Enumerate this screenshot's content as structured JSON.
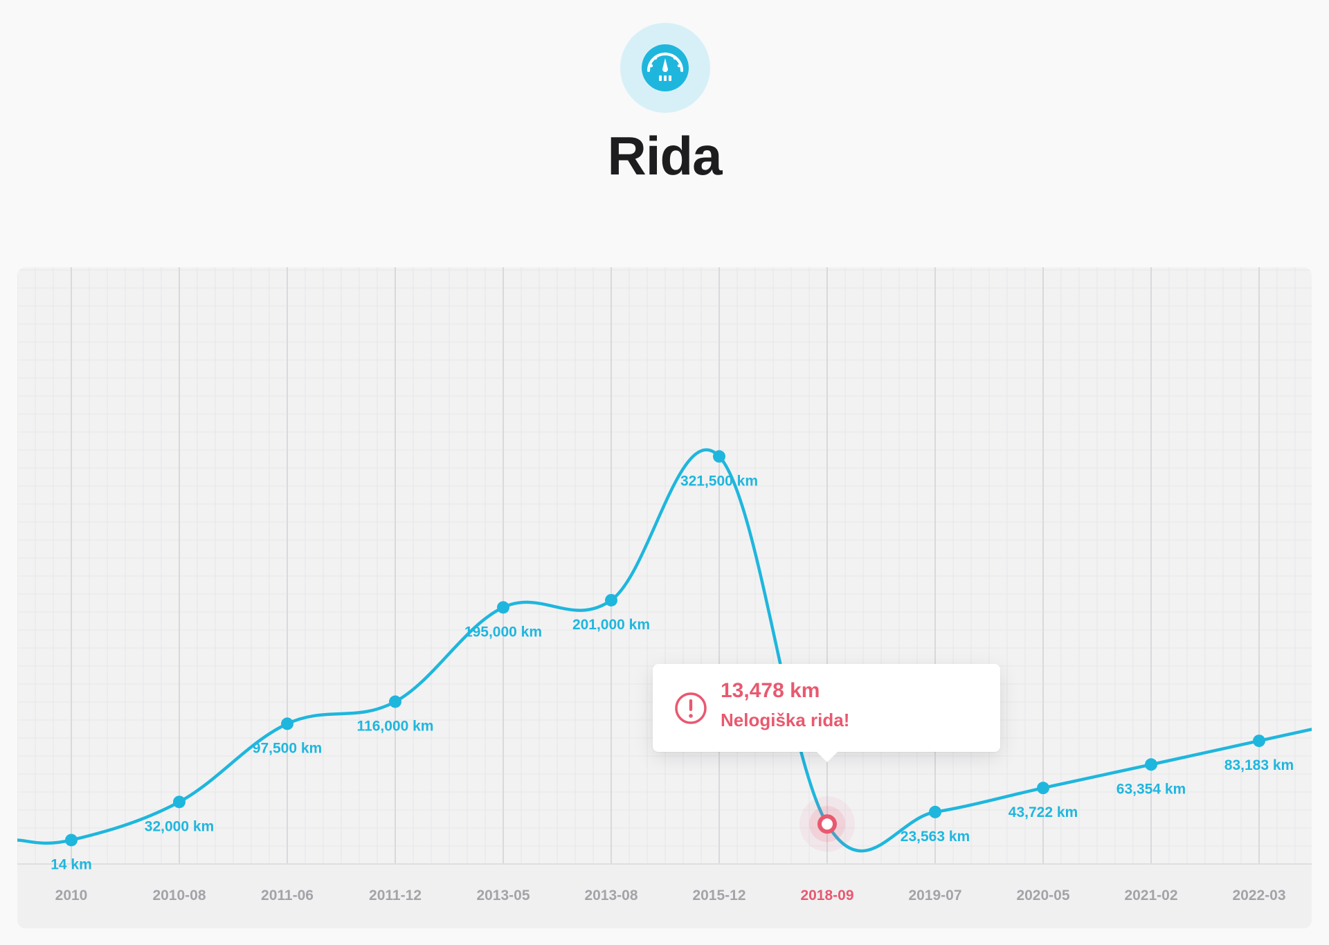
{
  "header": {
    "icon": "odometer-icon",
    "title": "Rida"
  },
  "colors": {
    "line": "#1fb6dd",
    "alert": "#e8596f",
    "axis_text": "#a3a3a8",
    "grid_major": "#d9d9dc",
    "grid_minor": "#e6e6e8",
    "icon_bg": "#d7f0f8"
  },
  "chart_data": {
    "type": "line",
    "title": "",
    "xlabel": "",
    "ylabel": "",
    "unit": "km",
    "categories": [
      "2010",
      "2010-08",
      "2011-06",
      "2011-12",
      "2013-05",
      "2013-08",
      "2015-12",
      "2018-09",
      "2019-07",
      "2020-05",
      "2021-02",
      "2022-03"
    ],
    "values": [
      14,
      32000,
      97500,
      116000,
      195000,
      201000,
      321500,
      13478,
      23563,
      43722,
      63354,
      83183
    ],
    "point_labels": [
      "14 km",
      "32,000 km",
      "97,500 km",
      "116,000 km",
      "195,000 km",
      "201,000 km",
      "321,500 km",
      "13,478 km",
      "23,563 km",
      "43,722 km",
      "63,354 km",
      "83,183 km"
    ],
    "ylim": [
      -20000,
      480000
    ],
    "grid": true,
    "highlight_index": 7,
    "tooltip": {
      "value": "13,478 km",
      "message": "Nelogiška rida!",
      "icon": "exclamation-circle-icon"
    }
  }
}
